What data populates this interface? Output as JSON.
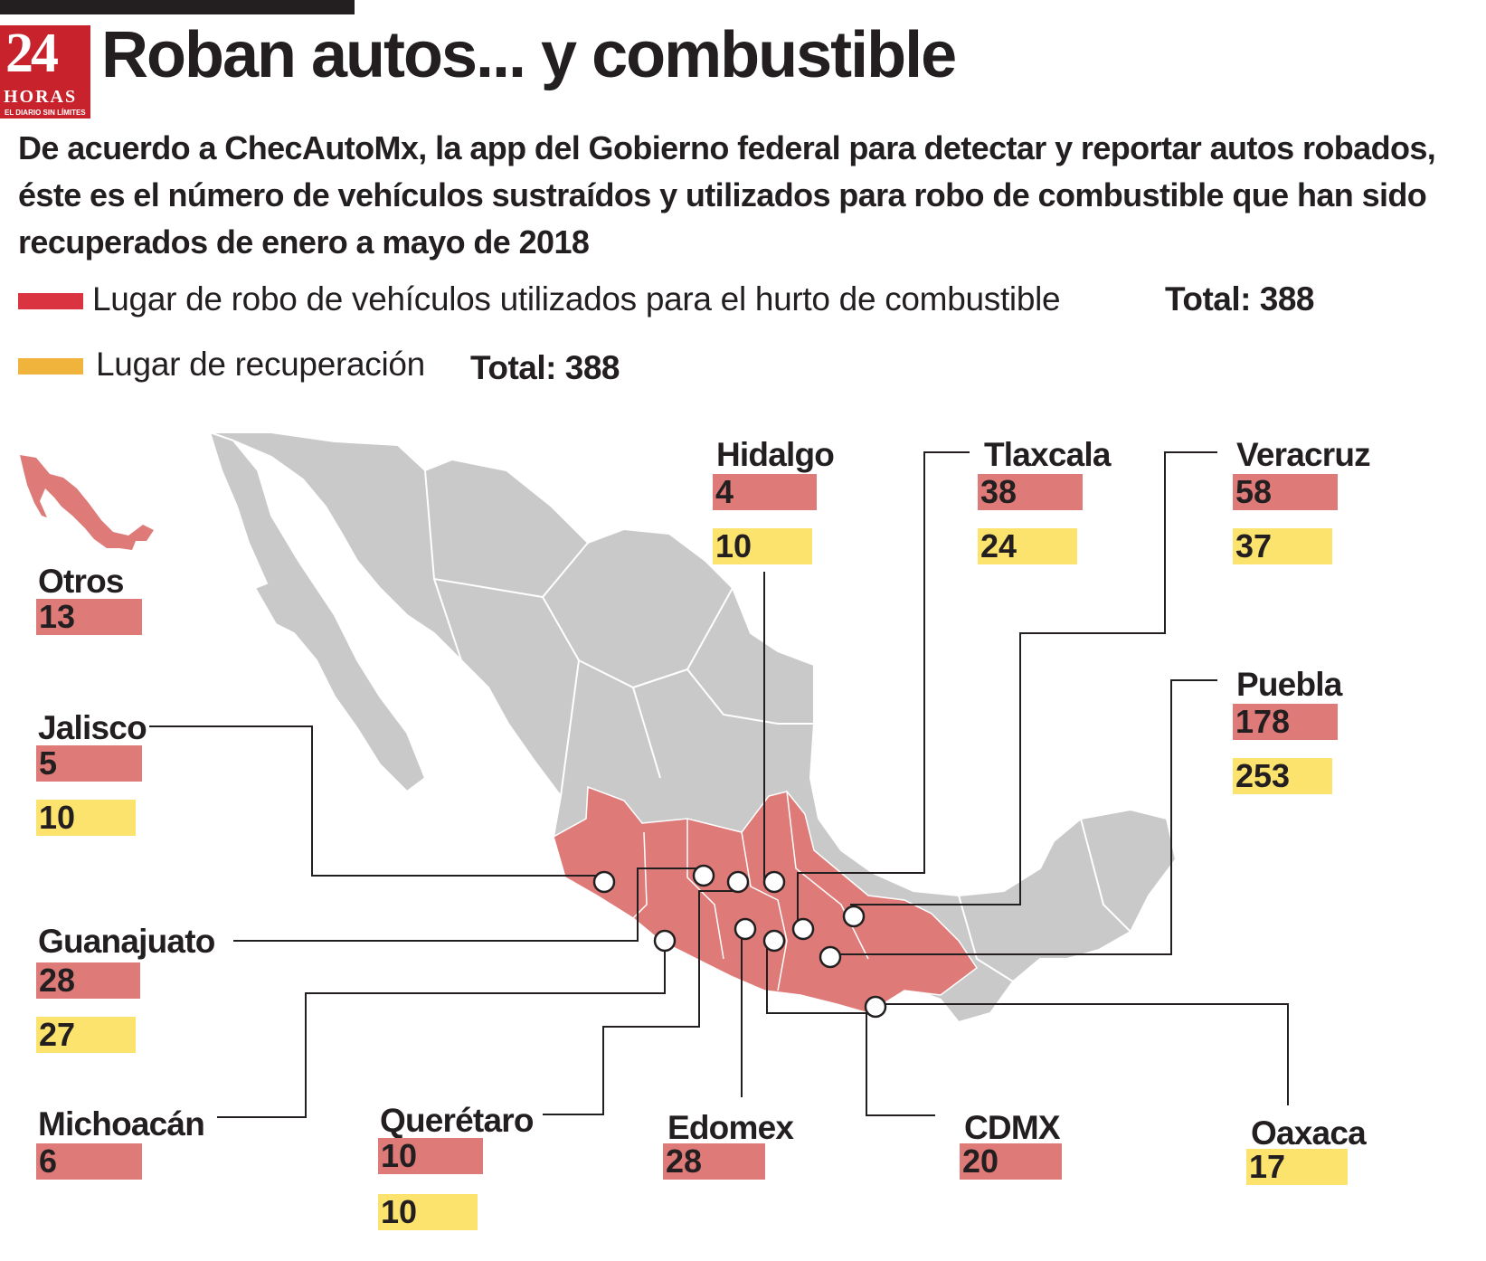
{
  "logo": {
    "number": "24",
    "word": "HORAS",
    "tagline": "EL DIARIO SIN LÍMITES"
  },
  "title": "Roban autos... y combustible",
  "subtitle": "De acuerdo a ChecAutoMx, la app del Gobierno federal para detectar y reportar autos robados, éste es el número de vehículos sustraídos y utilizados para robo de combustible que han sido recuperados de enero a mayo de 2018",
  "legend": [
    {
      "label": "Lugar de robo de vehículos utilizados para el hurto de combustible",
      "total": "Total: 388",
      "color": "#d9343f"
    },
    {
      "label": "Lugar de recuperación",
      "total": "Total: 388",
      "color": "#f0b33c"
    }
  ],
  "colors": {
    "stolen_box": "#de7b78",
    "recovered_box": "#fce36e",
    "map_highlight": "#de7b78",
    "map_base": "#c9c9c9"
  },
  "states": {
    "hidalgo": {
      "name": "Hidalgo",
      "robo": "4",
      "recuperacion": "10"
    },
    "tlaxcala": {
      "name": "Tlaxcala",
      "robo": "38",
      "recuperacion": "24"
    },
    "veracruz": {
      "name": "Veracruz",
      "robo": "58",
      "recuperacion": "37"
    },
    "otros": {
      "name": "Otros",
      "robo": "13"
    },
    "jalisco": {
      "name": "Jalisco",
      "robo": "5",
      "recuperacion": "10"
    },
    "puebla": {
      "name": "Puebla",
      "robo": "178",
      "recuperacion": "253"
    },
    "guanajuato": {
      "name": "Guanajuato",
      "robo": "28",
      "recuperacion": "27"
    },
    "michoacan": {
      "name": "Michoacán",
      "robo": "6"
    },
    "queretaro": {
      "name": "Querétaro",
      "robo": "10",
      "recuperacion": "10"
    },
    "edomex": {
      "name": "Edomex",
      "robo": "28"
    },
    "cdmx": {
      "name": "CDMX",
      "robo": "20"
    },
    "oaxaca": {
      "name": "Oaxaca",
      "recuperacion": "17"
    }
  }
}
